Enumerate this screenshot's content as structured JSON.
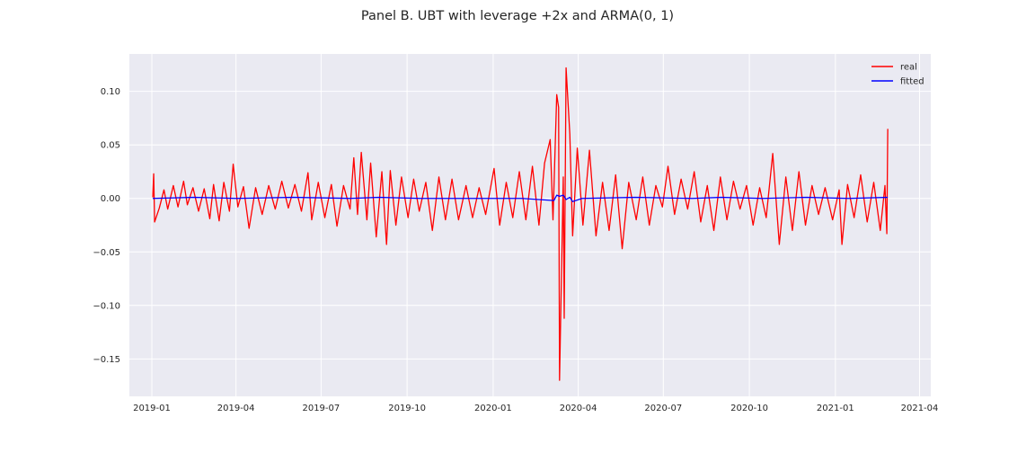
{
  "chart_data": {
    "type": "line",
    "title": "Panel B. UBT with leverage +2x and ARMA(0, 1)",
    "xlabel": "",
    "ylabel": "",
    "x_range": [
      "2018-12-08",
      "2021-04-13"
    ],
    "ylim": [
      -0.185,
      0.135
    ],
    "x_ticks": [
      {
        "date": "2019-01-01",
        "label": "2019-01"
      },
      {
        "date": "2019-04-01",
        "label": "2019-04"
      },
      {
        "date": "2019-07-01",
        "label": "2019-07"
      },
      {
        "date": "2019-10-01",
        "label": "2019-10"
      },
      {
        "date": "2020-01-01",
        "label": "2020-01"
      },
      {
        "date": "2020-04-01",
        "label": "2020-04"
      },
      {
        "date": "2020-07-01",
        "label": "2020-07"
      },
      {
        "date": "2020-10-01",
        "label": "2020-10"
      },
      {
        "date": "2021-01-01",
        "label": "2021-01"
      },
      {
        "date": "2021-04-01",
        "label": "2021-04"
      }
    ],
    "y_ticks": [
      {
        "value": 0.1,
        "label": "0.10"
      },
      {
        "value": 0.05,
        "label": "0.05"
      },
      {
        "value": 0.0,
        "label": "0.00"
      },
      {
        "value": -0.05,
        "label": "−0.05"
      },
      {
        "value": -0.1,
        "label": "−0.10"
      },
      {
        "value": -0.15,
        "label": "−0.15"
      }
    ],
    "grid": true,
    "legend_position": "top-right",
    "background_color": "#eaeaf2",
    "series": [
      {
        "name": "real",
        "color": "#ff0000",
        "points": [
          [
            "2019-01-02",
            0.001
          ],
          [
            "2019-01-03",
            0.023
          ],
          [
            "2019-01-04",
            -0.022
          ],
          [
            "2019-01-09",
            -0.009
          ],
          [
            "2019-01-14",
            0.008
          ],
          [
            "2019-01-18",
            -0.01
          ],
          [
            "2019-01-24",
            0.012
          ],
          [
            "2019-01-29",
            -0.008
          ],
          [
            "2019-02-04",
            0.016
          ],
          [
            "2019-02-08",
            -0.006
          ],
          [
            "2019-02-14",
            0.01
          ],
          [
            "2019-02-20",
            -0.012
          ],
          [
            "2019-02-26",
            0.009
          ],
          [
            "2019-03-04",
            -0.019
          ],
          [
            "2019-03-08",
            0.013
          ],
          [
            "2019-03-14",
            -0.021
          ],
          [
            "2019-03-19",
            0.015
          ],
          [
            "2019-03-25",
            -0.012
          ],
          [
            "2019-03-29",
            0.032
          ],
          [
            "2019-04-03",
            -0.008
          ],
          [
            "2019-04-09",
            0.011
          ],
          [
            "2019-04-15",
            -0.028
          ],
          [
            "2019-04-22",
            0.01
          ],
          [
            "2019-04-29",
            -0.015
          ],
          [
            "2019-05-06",
            0.012
          ],
          [
            "2019-05-13",
            -0.01
          ],
          [
            "2019-05-20",
            0.016
          ],
          [
            "2019-05-27",
            -0.009
          ],
          [
            "2019-06-03",
            0.013
          ],
          [
            "2019-06-10",
            -0.012
          ],
          [
            "2019-06-17",
            0.024
          ],
          [
            "2019-06-21",
            -0.02
          ],
          [
            "2019-06-28",
            0.015
          ],
          [
            "2019-07-05",
            -0.018
          ],
          [
            "2019-07-12",
            0.013
          ],
          [
            "2019-07-18",
            -0.026
          ],
          [
            "2019-07-25",
            0.012
          ],
          [
            "2019-08-01",
            -0.01
          ],
          [
            "2019-08-05",
            0.038
          ],
          [
            "2019-08-09",
            -0.015
          ],
          [
            "2019-08-13",
            0.043
          ],
          [
            "2019-08-19",
            -0.02
          ],
          [
            "2019-08-23",
            0.033
          ],
          [
            "2019-08-29",
            -0.036
          ],
          [
            "2019-09-04",
            0.025
          ],
          [
            "2019-09-09",
            -0.043
          ],
          [
            "2019-09-13",
            0.026
          ],
          [
            "2019-09-19",
            -0.025
          ],
          [
            "2019-09-25",
            0.02
          ],
          [
            "2019-10-02",
            -0.018
          ],
          [
            "2019-10-08",
            0.018
          ],
          [
            "2019-10-14",
            -0.012
          ],
          [
            "2019-10-21",
            0.015
          ],
          [
            "2019-10-28",
            -0.03
          ],
          [
            "2019-11-04",
            0.02
          ],
          [
            "2019-11-11",
            -0.02
          ],
          [
            "2019-11-18",
            0.018
          ],
          [
            "2019-11-25",
            -0.02
          ],
          [
            "2019-12-03",
            0.012
          ],
          [
            "2019-12-10",
            -0.018
          ],
          [
            "2019-12-17",
            0.01
          ],
          [
            "2019-12-24",
            -0.015
          ],
          [
            "2020-01-02",
            0.028
          ],
          [
            "2020-01-08",
            -0.025
          ],
          [
            "2020-01-15",
            0.015
          ],
          [
            "2020-01-22",
            -0.018
          ],
          [
            "2020-01-29",
            0.025
          ],
          [
            "2020-02-05",
            -0.02
          ],
          [
            "2020-02-12",
            0.03
          ],
          [
            "2020-02-19",
            -0.025
          ],
          [
            "2020-02-25",
            0.033
          ],
          [
            "2020-03-02",
            0.055
          ],
          [
            "2020-03-05",
            -0.02
          ],
          [
            "2020-03-09",
            0.097
          ],
          [
            "2020-03-11",
            0.085
          ],
          [
            "2020-03-12",
            -0.17
          ],
          [
            "2020-03-16",
            0.02
          ],
          [
            "2020-03-17",
            -0.112
          ],
          [
            "2020-03-19",
            0.122
          ],
          [
            "2020-03-23",
            0.06
          ],
          [
            "2020-03-26",
            -0.035
          ],
          [
            "2020-03-31",
            0.047
          ],
          [
            "2020-04-06",
            -0.025
          ],
          [
            "2020-04-13",
            0.045
          ],
          [
            "2020-04-20",
            -0.035
          ],
          [
            "2020-04-27",
            0.015
          ],
          [
            "2020-05-04",
            -0.03
          ],
          [
            "2020-05-11",
            0.022
          ],
          [
            "2020-05-18",
            -0.047
          ],
          [
            "2020-05-25",
            0.015
          ],
          [
            "2020-06-02",
            -0.02
          ],
          [
            "2020-06-09",
            0.02
          ],
          [
            "2020-06-16",
            -0.025
          ],
          [
            "2020-06-23",
            0.012
          ],
          [
            "2020-06-30",
            -0.008
          ],
          [
            "2020-07-06",
            0.03
          ],
          [
            "2020-07-13",
            -0.015
          ],
          [
            "2020-07-20",
            0.018
          ],
          [
            "2020-07-27",
            -0.01
          ],
          [
            "2020-08-03",
            0.025
          ],
          [
            "2020-08-10",
            -0.022
          ],
          [
            "2020-08-17",
            0.012
          ],
          [
            "2020-08-24",
            -0.03
          ],
          [
            "2020-08-31",
            0.02
          ],
          [
            "2020-09-07",
            -0.02
          ],
          [
            "2020-09-14",
            0.016
          ],
          [
            "2020-09-21",
            -0.01
          ],
          [
            "2020-09-28",
            0.012
          ],
          [
            "2020-10-05",
            -0.025
          ],
          [
            "2020-10-12",
            0.01
          ],
          [
            "2020-10-19",
            -0.018
          ],
          [
            "2020-10-26",
            0.042
          ],
          [
            "2020-11-02",
            -0.043
          ],
          [
            "2020-11-09",
            0.02
          ],
          [
            "2020-11-16",
            -0.03
          ],
          [
            "2020-11-23",
            0.025
          ],
          [
            "2020-11-30",
            -0.025
          ],
          [
            "2020-12-07",
            0.012
          ],
          [
            "2020-12-14",
            -0.015
          ],
          [
            "2020-12-21",
            0.01
          ],
          [
            "2020-12-29",
            -0.02
          ],
          [
            "2021-01-05",
            0.008
          ],
          [
            "2021-01-08",
            -0.043
          ],
          [
            "2021-01-14",
            0.013
          ],
          [
            "2021-01-21",
            -0.018
          ],
          [
            "2021-01-28",
            0.022
          ],
          [
            "2021-02-04",
            -0.022
          ],
          [
            "2021-02-11",
            0.015
          ],
          [
            "2021-02-18",
            -0.03
          ],
          [
            "2021-02-23",
            0.012
          ],
          [
            "2021-02-25",
            -0.033
          ],
          [
            "2021-02-26",
            0.065
          ]
        ]
      },
      {
        "name": "fitted",
        "color": "#0000ff",
        "points": [
          [
            "2019-01-02",
            0.0
          ],
          [
            "2019-02-15",
            0.001
          ],
          [
            "2019-04-01",
            0.0
          ],
          [
            "2019-06-01",
            0.001
          ],
          [
            "2019-08-01",
            0.0
          ],
          [
            "2019-09-01",
            0.001
          ],
          [
            "2019-10-15",
            0.0
          ],
          [
            "2019-12-01",
            0.0
          ],
          [
            "2020-02-01",
            0.0
          ],
          [
            "2020-03-06",
            -0.002
          ],
          [
            "2020-03-09",
            0.003
          ],
          [
            "2020-03-12",
            0.002
          ],
          [
            "2020-03-16",
            0.003
          ],
          [
            "2020-03-19",
            -0.001
          ],
          [
            "2020-03-23",
            0.001
          ],
          [
            "2020-03-26",
            -0.003
          ],
          [
            "2020-04-05",
            0.0
          ],
          [
            "2020-06-01",
            0.001
          ],
          [
            "2020-08-01",
            0.0
          ],
          [
            "2020-09-01",
            0.001
          ],
          [
            "2020-10-15",
            0.0
          ],
          [
            "2020-12-01",
            0.001
          ],
          [
            "2021-01-15",
            0.0
          ],
          [
            "2021-02-26",
            0.001
          ]
        ]
      }
    ]
  }
}
